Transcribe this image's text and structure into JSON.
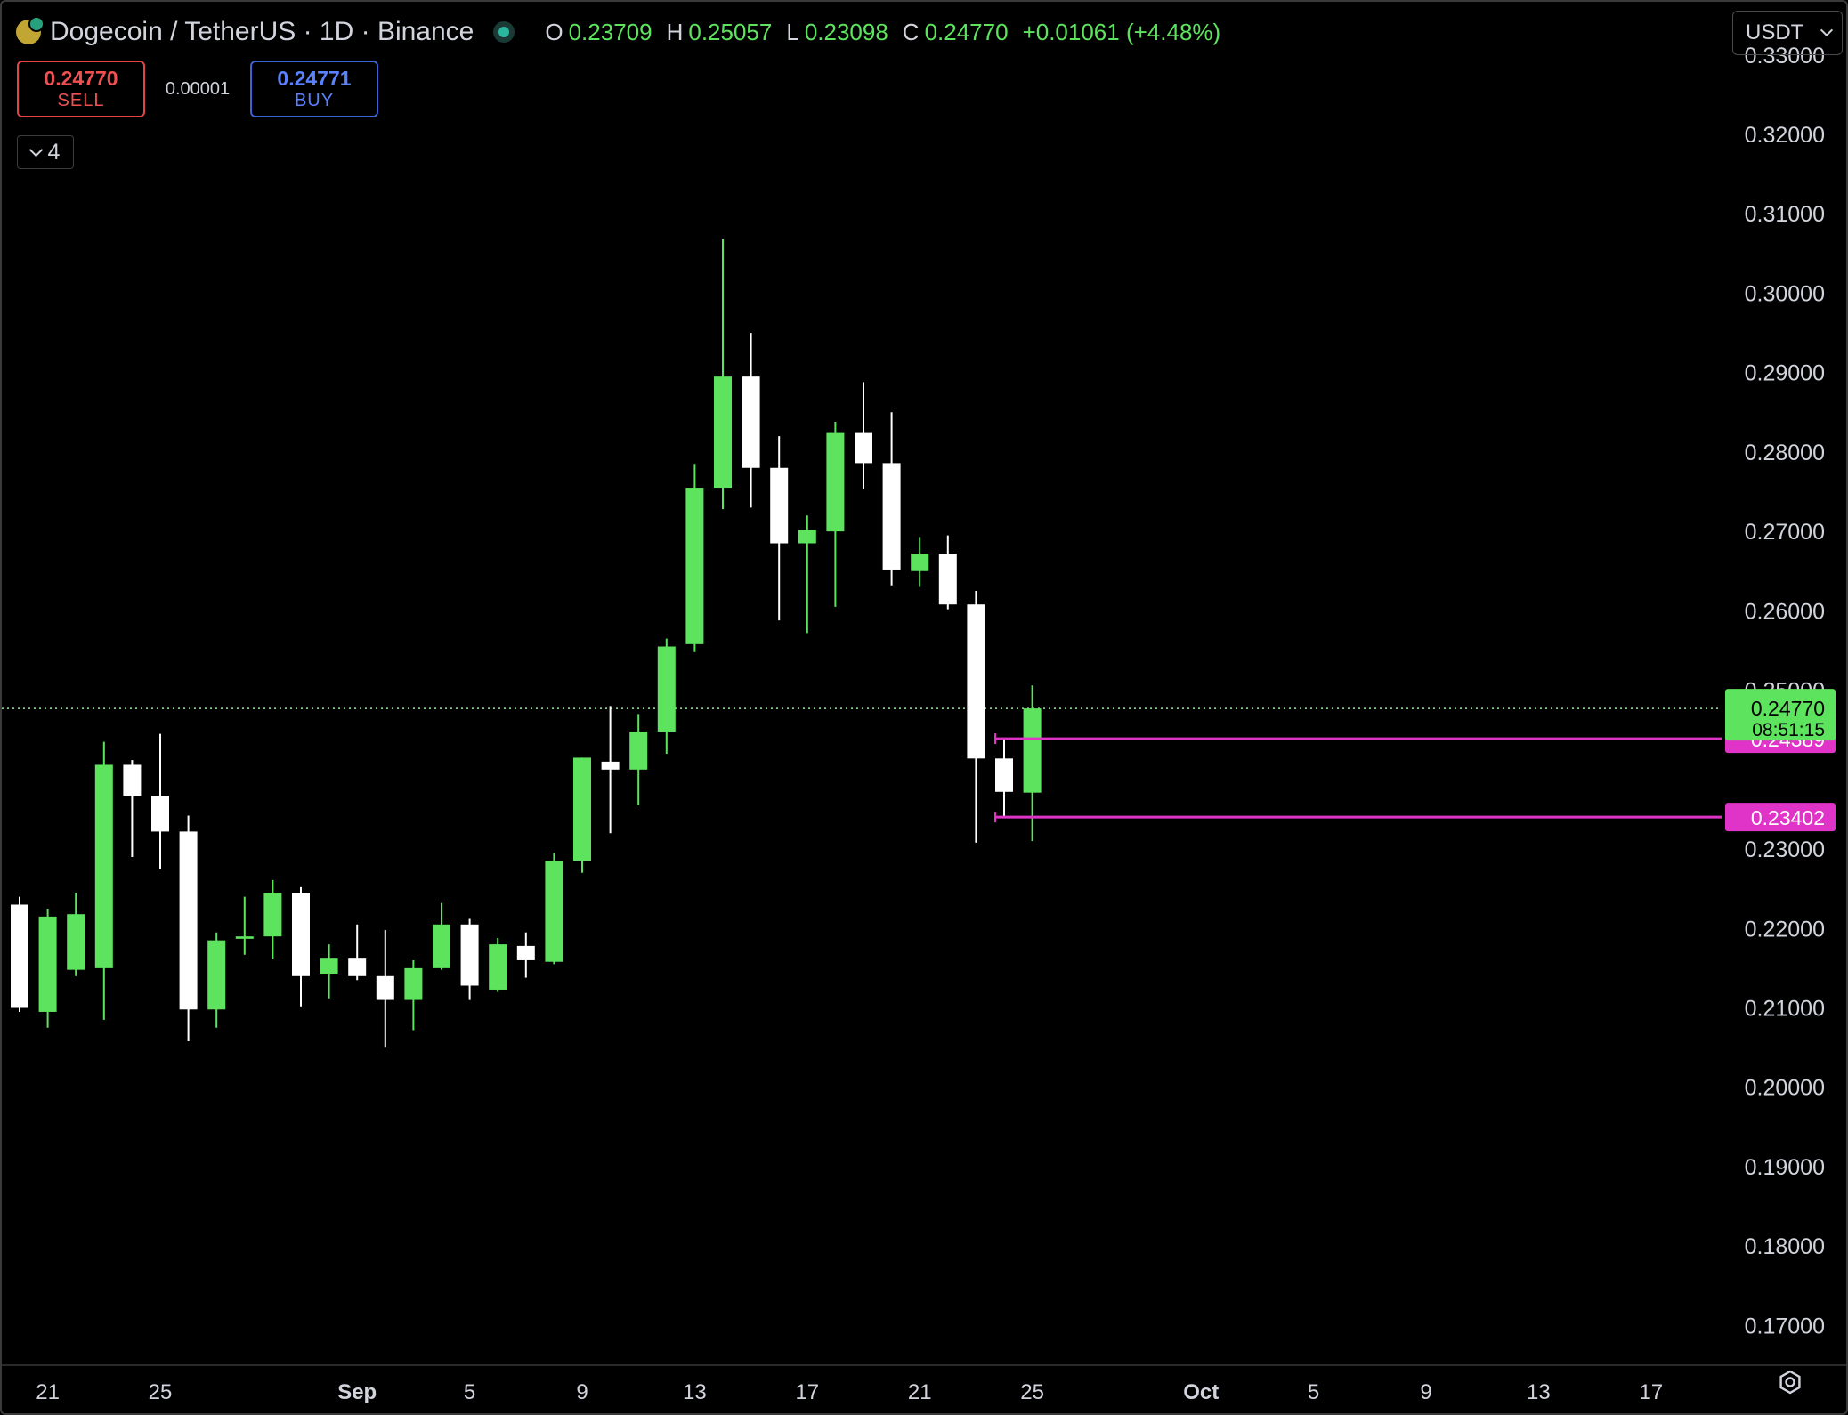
{
  "header": {
    "title": "Dogecoin / TetherUS · 1D · Binance",
    "ohlc": [
      {
        "label": "O",
        "value": "0.23709"
      },
      {
        "label": "H",
        "value": "0.25057"
      },
      {
        "label": "L",
        "value": "0.23098"
      },
      {
        "label": "C",
        "value": "0.24770"
      }
    ],
    "change": "+0.01061 (+4.48%)"
  },
  "trade": {
    "sell_price": "0.24770",
    "sell_label": "SELL",
    "spread": "0.00001",
    "buy_price": "0.24771",
    "buy_label": "BUY"
  },
  "indicators_count": "4",
  "currency": "USDT",
  "colors": {
    "up": "#5ee35e",
    "down": "#ffffff",
    "level": "#e033c8",
    "price_line": "#9ee89e"
  },
  "chart_data": {
    "type": "candlestick",
    "y_range": [
      0.165,
      0.3367
    ],
    "y_ticks": [
      0.33,
      0.32,
      0.31,
      0.3,
      0.29,
      0.28,
      0.27,
      0.26,
      0.25,
      0.23,
      0.22,
      0.21,
      0.2,
      0.19,
      0.18,
      0.17
    ],
    "y_tick_labels": [
      "0.33000",
      "0.32000",
      "0.31000",
      "0.30000",
      "0.29000",
      "0.28000",
      "0.27000",
      "0.26000",
      "0.25000",
      "0.23000",
      "0.22000",
      "0.21000",
      "0.20000",
      "0.19000",
      "0.18000",
      "0.17000"
    ],
    "x_labels": [
      {
        "label": "21",
        "index": 1
      },
      {
        "label": "25",
        "index": 5
      },
      {
        "label": "Sep",
        "index": 12,
        "bold": true
      },
      {
        "label": "5",
        "index": 16
      },
      {
        "label": "9",
        "index": 20
      },
      {
        "label": "13",
        "index": 24
      },
      {
        "label": "17",
        "index": 28
      },
      {
        "label": "21",
        "index": 32
      },
      {
        "label": "25",
        "index": 36
      },
      {
        "label": "Oct",
        "index": 42,
        "bold": true
      },
      {
        "label": "5",
        "index": 46
      },
      {
        "label": "9",
        "index": 50
      },
      {
        "label": "13",
        "index": 54
      },
      {
        "label": "17",
        "index": 58
      }
    ],
    "candles": [
      {
        "o": 0.223,
        "h": 0.224,
        "l": 0.2095,
        "c": 0.21
      },
      {
        "o": 0.2095,
        "h": 0.2225,
        "l": 0.2075,
        "c": 0.2215
      },
      {
        "o": 0.2148,
        "h": 0.2245,
        "l": 0.214,
        "c": 0.2218
      },
      {
        "o": 0.215,
        "h": 0.2435,
        "l": 0.2085,
        "c": 0.2406
      },
      {
        "o": 0.2406,
        "h": 0.2412,
        "l": 0.229,
        "c": 0.2367
      },
      {
        "o": 0.2367,
        "h": 0.2445,
        "l": 0.2275,
        "c": 0.2322
      },
      {
        "o": 0.2322,
        "h": 0.2342,
        "l": 0.2058,
        "c": 0.2098
      },
      {
        "o": 0.2098,
        "h": 0.2195,
        "l": 0.2075,
        "c": 0.2185
      },
      {
        "o": 0.2187,
        "h": 0.224,
        "l": 0.2167,
        "c": 0.219
      },
      {
        "o": 0.219,
        "h": 0.2261,
        "l": 0.2161,
        "c": 0.2245
      },
      {
        "o": 0.2245,
        "h": 0.2252,
        "l": 0.2102,
        "c": 0.214
      },
      {
        "o": 0.2142,
        "h": 0.218,
        "l": 0.2112,
        "c": 0.2162
      },
      {
        "o": 0.2162,
        "h": 0.2205,
        "l": 0.2135,
        "c": 0.214
      },
      {
        "o": 0.214,
        "h": 0.2198,
        "l": 0.205,
        "c": 0.211
      },
      {
        "o": 0.211,
        "h": 0.216,
        "l": 0.2072,
        "c": 0.215
      },
      {
        "o": 0.215,
        "h": 0.2232,
        "l": 0.2148,
        "c": 0.2205
      },
      {
        "o": 0.2205,
        "h": 0.2212,
        "l": 0.211,
        "c": 0.2128
      },
      {
        "o": 0.2123,
        "h": 0.2188,
        "l": 0.212,
        "c": 0.218
      },
      {
        "o": 0.2178,
        "h": 0.2195,
        "l": 0.2138,
        "c": 0.216
      },
      {
        "o": 0.2158,
        "h": 0.2295,
        "l": 0.2155,
        "c": 0.2285
      },
      {
        "o": 0.2285,
        "h": 0.2415,
        "l": 0.227,
        "c": 0.2415
      },
      {
        "o": 0.241,
        "h": 0.248,
        "l": 0.232,
        "c": 0.24
      },
      {
        "o": 0.24,
        "h": 0.247,
        "l": 0.2355,
        "c": 0.2448
      },
      {
        "o": 0.2448,
        "h": 0.2565,
        "l": 0.242,
        "c": 0.2555
      },
      {
        "o": 0.2558,
        "h": 0.2785,
        "l": 0.2548,
        "c": 0.2755
      },
      {
        "o": 0.2755,
        "h": 0.3068,
        "l": 0.2728,
        "c": 0.2895
      },
      {
        "o": 0.2895,
        "h": 0.295,
        "l": 0.273,
        "c": 0.278
      },
      {
        "o": 0.278,
        "h": 0.282,
        "l": 0.2588,
        "c": 0.2685
      },
      {
        "o": 0.2685,
        "h": 0.272,
        "l": 0.2572,
        "c": 0.2702
      },
      {
        "o": 0.27,
        "h": 0.2838,
        "l": 0.2605,
        "c": 0.2825
      },
      {
        "o": 0.2825,
        "h": 0.2888,
        "l": 0.2754,
        "c": 0.2786
      },
      {
        "o": 0.2786,
        "h": 0.285,
        "l": 0.2632,
        "c": 0.2652
      },
      {
        "o": 0.265,
        "h": 0.2693,
        "l": 0.263,
        "c": 0.2672
      },
      {
        "o": 0.2672,
        "h": 0.2695,
        "l": 0.2602,
        "c": 0.2608
      },
      {
        "o": 0.2608,
        "h": 0.2625,
        "l": 0.2308,
        "c": 0.2414
      },
      {
        "o": 0.2414,
        "h": 0.244,
        "l": 0.234,
        "c": 0.2372
      },
      {
        "o": 0.2371,
        "h": 0.2506,
        "l": 0.231,
        "c": 0.2477
      }
    ],
    "last_price": {
      "value": 0.2477,
      "label": "0.24770",
      "countdown": "08:51:15"
    },
    "levels": [
      {
        "value": 0.24389,
        "label": "0.24389",
        "from_index": 35
      },
      {
        "value": 0.23402,
        "label": "0.23402",
        "from_index": 35
      }
    ]
  }
}
